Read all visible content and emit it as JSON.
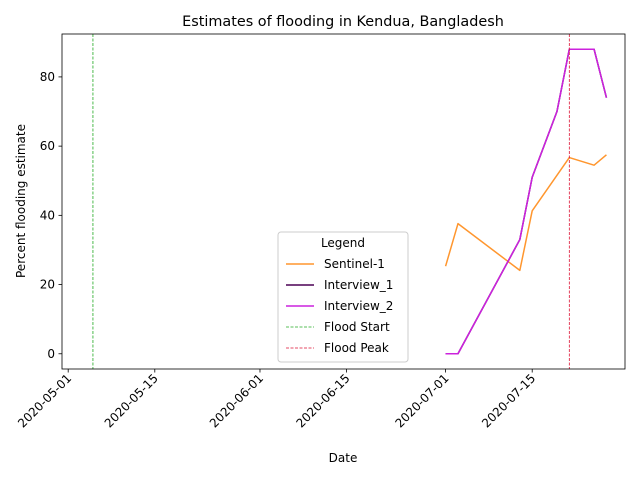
{
  "chart_data": {
    "type": "line",
    "title": "Estimates of flooding in Kendua, Bangladesh",
    "xlabel": "Date",
    "ylabel": "Percent flooding estimate",
    "xlim": [
      "2020-04-30",
      "2020-07-30"
    ],
    "ylim": [
      -4.4,
      92.4
    ],
    "x_ticks": [
      "2020-05-01",
      "2020-05-15",
      "2020-06-01",
      "2020-06-15",
      "2020-07-01",
      "2020-07-15"
    ],
    "y_ticks": [
      0,
      20,
      40,
      60,
      80
    ],
    "grid": false,
    "legend": {
      "title": "Legend",
      "placement": "lower center"
    },
    "series": [
      {
        "name": "Sentinel-1",
        "color": "#ff962e",
        "style": "solid",
        "points": [
          [
            "2020-07-01",
            25.3
          ],
          [
            "2020-07-03",
            37.6
          ],
          [
            "2020-07-13",
            24.1
          ],
          [
            "2020-07-15",
            41.3
          ],
          [
            "2020-07-21",
            56.7
          ],
          [
            "2020-07-25",
            54.5
          ],
          [
            "2020-07-27",
            57.5
          ]
        ]
      },
      {
        "name": "Interview_1",
        "color": "#4b0055",
        "style": "solid",
        "points": [
          [
            "2020-07-01",
            0
          ],
          [
            "2020-07-03",
            0
          ],
          [
            "2020-07-13",
            33
          ],
          [
            "2020-07-15",
            51
          ],
          [
            "2020-07-19",
            70
          ],
          [
            "2020-07-21",
            88
          ],
          [
            "2020-07-25",
            88
          ],
          [
            "2020-07-27",
            74
          ]
        ]
      },
      {
        "name": "Interview_2",
        "color": "#cc22dd",
        "style": "solid",
        "points": [
          [
            "2020-07-01",
            0
          ],
          [
            "2020-07-03",
            0
          ],
          [
            "2020-07-13",
            33
          ],
          [
            "2020-07-15",
            51
          ],
          [
            "2020-07-19",
            70
          ],
          [
            "2020-07-21",
            88
          ],
          [
            "2020-07-25",
            88
          ],
          [
            "2020-07-27",
            74
          ]
        ]
      },
      {
        "name": "Flood Start",
        "color": "#22aa22",
        "style": "dashed",
        "vline": "2020-05-05"
      },
      {
        "name": "Flood Peak",
        "color": "#dd1133",
        "style": "dashed",
        "vline": "2020-07-21"
      }
    ]
  }
}
